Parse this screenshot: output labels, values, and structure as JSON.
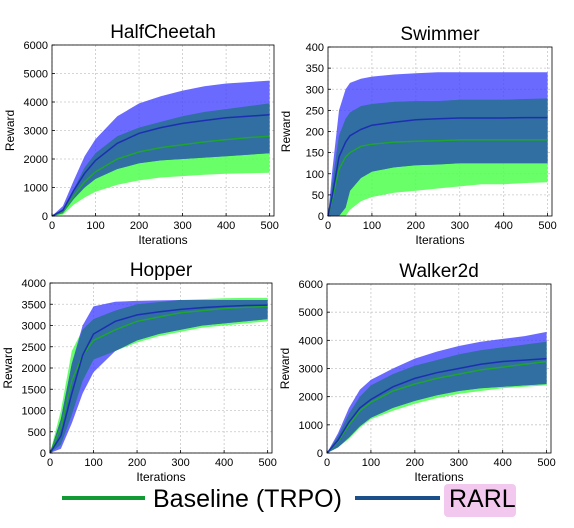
{
  "colors": {
    "baseline_line": "#1fa52f",
    "baseline_band": "#4dff4d",
    "rarl_line": "#1c2fb3",
    "rarl_band": "#4040ff",
    "overlap_band": "#2f6f9a",
    "legend_baseline": "#129a35",
    "legend_rarl": "#1b4f8a",
    "legend_rarl_highlight": "#f3c8ee",
    "grid": "#c8c8c8"
  },
  "legend": {
    "items": [
      {
        "label": "Baseline (TRPO)",
        "color": "#129a35"
      },
      {
        "label": "RARL",
        "color": "#1b4f8a",
        "highlight": "#f3c8ee"
      }
    ]
  },
  "chart_data": [
    {
      "type": "line",
      "title": "HalfCheetah",
      "xlabel": "Iterations",
      "ylabel": "Reward",
      "xlim": [
        0,
        510
      ],
      "ylim": [
        0,
        6000
      ],
      "xticks": [
        0,
        100,
        200,
        300,
        400,
        500
      ],
      "yticks": [
        0,
        1000,
        2000,
        3000,
        4000,
        5000,
        6000
      ],
      "grid": true,
      "x": [
        0,
        25,
        50,
        75,
        100,
        150,
        200,
        250,
        300,
        350,
        400,
        450,
        500
      ],
      "series": [
        {
          "name": "Baseline (TRPO)",
          "mean": [
            0,
            150,
            700,
            1200,
            1550,
            2000,
            2250,
            2400,
            2500,
            2600,
            2680,
            2750,
            2800
          ],
          "lower": [
            0,
            50,
            400,
            650,
            850,
            1100,
            1250,
            1350,
            1400,
            1450,
            1480,
            1500,
            1520
          ],
          "upper": [
            0,
            250,
            950,
            1700,
            2200,
            2800,
            3100,
            3300,
            3500,
            3650,
            3750,
            3850,
            3950
          ]
        },
        {
          "name": "RARL",
          "mean": [
            0,
            200,
            900,
            1500,
            1950,
            2550,
            2900,
            3100,
            3250,
            3350,
            3450,
            3500,
            3550
          ],
          "lower": [
            0,
            100,
            600,
            1000,
            1300,
            1650,
            1850,
            1950,
            2000,
            2050,
            2100,
            2150,
            2200
          ],
          "upper": [
            0,
            350,
            1250,
            2100,
            2700,
            3500,
            3950,
            4200,
            4400,
            4550,
            4650,
            4700,
            4750
          ]
        }
      ]
    },
    {
      "type": "line",
      "title": "Swimmer",
      "xlabel": "Iterations",
      "ylabel": "Reward",
      "xlim": [
        0,
        510
      ],
      "ylim": [
        0,
        400
      ],
      "xticks": [
        0,
        100,
        200,
        300,
        400,
        500
      ],
      "yticks": [
        0,
        50,
        100,
        150,
        200,
        250,
        300,
        350,
        400
      ],
      "grid": true,
      "x": [
        0,
        10,
        25,
        40,
        50,
        75,
        100,
        150,
        200,
        250,
        300,
        350,
        400,
        450,
        500
      ],
      "series": [
        {
          "name": "Baseline (TRPO)",
          "mean": [
            0,
            40,
            110,
            140,
            150,
            165,
            170,
            175,
            177,
            178,
            180,
            180,
            180,
            180,
            180
          ],
          "lower": [
            0,
            0,
            0,
            0,
            15,
            35,
            45,
            55,
            60,
            65,
            70,
            75,
            75,
            78,
            80
          ],
          "upper": [
            0,
            80,
            190,
            230,
            245,
            260,
            265,
            270,
            272,
            272,
            275,
            275,
            275,
            277,
            278
          ]
        },
        {
          "name": "RARL",
          "mean": [
            0,
            50,
            140,
            175,
            190,
            205,
            215,
            222,
            228,
            230,
            232,
            232,
            232,
            233,
            233
          ],
          "lower": [
            0,
            0,
            0,
            20,
            60,
            90,
            105,
            115,
            120,
            122,
            125,
            125,
            125,
            125,
            125
          ],
          "upper": [
            0,
            110,
            250,
            300,
            315,
            325,
            330,
            335,
            338,
            340,
            340,
            340,
            340,
            340,
            340
          ]
        }
      ]
    },
    {
      "type": "line",
      "title": "Hopper",
      "xlabel": "Iterations",
      "ylabel": "Reward",
      "xlim": [
        0,
        510
      ],
      "ylim": [
        0,
        4000
      ],
      "xticks": [
        0,
        100,
        200,
        300,
        400,
        500
      ],
      "yticks": [
        0,
        500,
        1000,
        1500,
        2000,
        2500,
        3000,
        3500,
        4000
      ],
      "grid": true,
      "x": [
        0,
        25,
        50,
        75,
        100,
        150,
        200,
        250,
        300,
        350,
        400,
        450,
        500
      ],
      "series": [
        {
          "name": "Baseline (TRPO)",
          "mean": [
            0,
            600,
            1700,
            2300,
            2650,
            2900,
            3100,
            3200,
            3300,
            3350,
            3400,
            3430,
            3450
          ],
          "lower": [
            0,
            200,
            900,
            1700,
            2200,
            2400,
            2600,
            2750,
            2850,
            2950,
            3000,
            3050,
            3100
          ],
          "upper": [
            0,
            1000,
            2400,
            2900,
            3150,
            3350,
            3500,
            3550,
            3600,
            3620,
            3640,
            3650,
            3650
          ]
        },
        {
          "name": "RARL",
          "mean": [
            0,
            400,
            1400,
            2300,
            2800,
            3100,
            3250,
            3320,
            3380,
            3420,
            3450,
            3470,
            3480
          ],
          "lower": [
            0,
            100,
            700,
            1400,
            1900,
            2400,
            2650,
            2800,
            2900,
            3000,
            3050,
            3100,
            3150
          ],
          "upper": [
            0,
            800,
            2100,
            3000,
            3450,
            3560,
            3580,
            3590,
            3600,
            3600,
            3600,
            3600,
            3600
          ]
        }
      ]
    },
    {
      "type": "line",
      "title": "Walker2d",
      "xlabel": "Iterations",
      "ylabel": "Reward",
      "xlim": [
        0,
        510
      ],
      "ylim": [
        0,
        6000
      ],
      "xticks": [
        0,
        100,
        200,
        300,
        400,
        500
      ],
      "yticks": [
        0,
        1000,
        2000,
        3000,
        4000,
        5000,
        6000
      ],
      "grid": true,
      "x": [
        0,
        25,
        50,
        75,
        100,
        150,
        200,
        250,
        300,
        350,
        400,
        450,
        500
      ],
      "series": [
        {
          "name": "Baseline (TRPO)",
          "mean": [
            0,
            400,
            1000,
            1500,
            1800,
            2200,
            2450,
            2650,
            2800,
            2950,
            3050,
            3150,
            3250
          ],
          "lower": [
            0,
            200,
            500,
            900,
            1200,
            1500,
            1750,
            1950,
            2100,
            2200,
            2300,
            2350,
            2400
          ],
          "upper": [
            0,
            600,
            1400,
            2000,
            2400,
            2800,
            3100,
            3300,
            3500,
            3650,
            3750,
            3850,
            3950
          ]
        },
        {
          "name": "RARL",
          "mean": [
            0,
            450,
            1100,
            1600,
            1900,
            2350,
            2650,
            2850,
            3000,
            3150,
            3250,
            3300,
            3350
          ],
          "lower": [
            0,
            200,
            550,
            950,
            1250,
            1600,
            1850,
            2050,
            2200,
            2300,
            2350,
            2400,
            2450
          ],
          "upper": [
            0,
            700,
            1600,
            2250,
            2600,
            3000,
            3350,
            3600,
            3800,
            3950,
            4050,
            4150,
            4300
          ]
        }
      ]
    }
  ]
}
